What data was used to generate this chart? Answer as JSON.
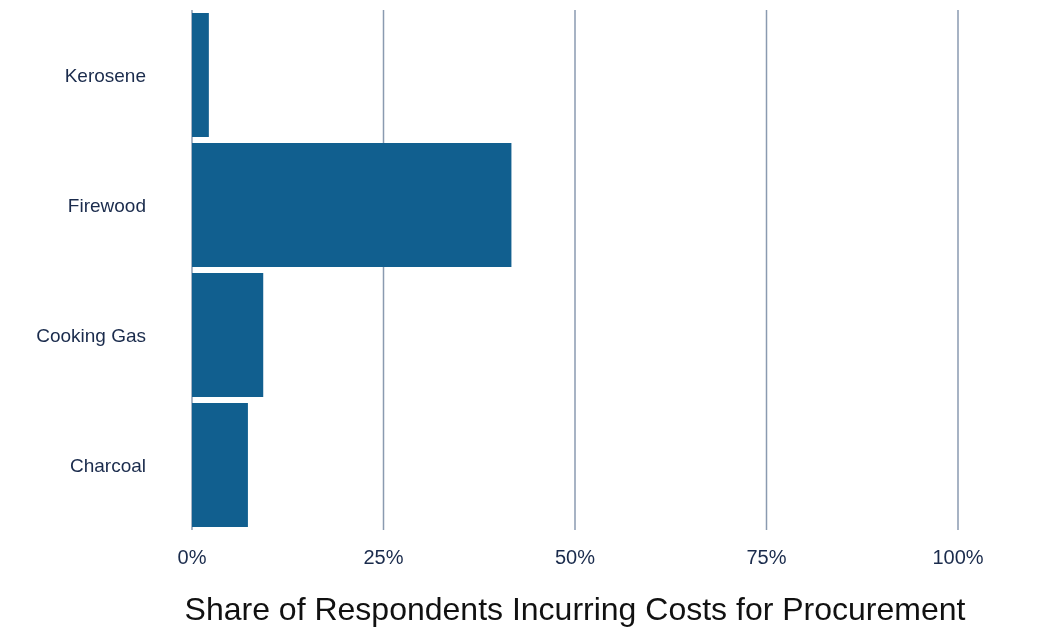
{
  "chart_data": {
    "type": "bar",
    "orientation": "horizontal",
    "xlabel": "Share of Respondents Incurring Costs for Procurement",
    "categories": [
      "Kerosene",
      "Firewood",
      "Cooking Gas",
      "Charcoal"
    ],
    "values": [
      2.2,
      41.7,
      9.3,
      7.3
    ],
    "color": "#115f8f",
    "xlim": [
      0,
      100
    ],
    "xticks": [
      {
        "value": 0,
        "label": "0%"
      },
      {
        "value": 25,
        "label": "25%"
      },
      {
        "value": 50,
        "label": "50%"
      },
      {
        "value": 75,
        "label": "75%"
      },
      {
        "value": 100,
        "label": "100%"
      }
    ],
    "grid": "x",
    "legend": false
  }
}
